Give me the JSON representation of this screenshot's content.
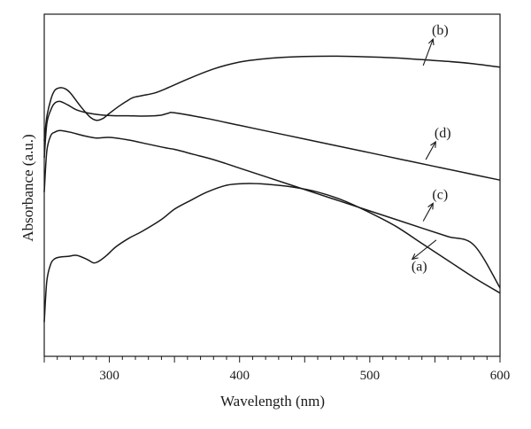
{
  "chart_data": {
    "type": "line",
    "title": "",
    "xlabel": "Wavelength (nm)",
    "ylabel": "Absorbance (a.u.)",
    "xlim": [
      250,
      600
    ],
    "ylim": [
      0,
      1
    ],
    "xticks": [
      300,
      400,
      500,
      600
    ],
    "xtick_labels": [
      "300",
      "400",
      "500",
      "600"
    ],
    "y_ticks_shown": false,
    "grid": false,
    "legend": "none",
    "series": [
      {
        "name": "(a)",
        "x": [
          250,
          252,
          255,
          258,
          262,
          268,
          275,
          283,
          288,
          292,
          298,
          305,
          315,
          325,
          340,
          350,
          362,
          375,
          390,
          405,
          420,
          440,
          460,
          480,
          500,
          520,
          540,
          560,
          580,
          600
        ],
        "y": [
          0.1,
          0.22,
          0.27,
          0.285,
          0.29,
          0.292,
          0.295,
          0.283,
          0.273,
          0.278,
          0.295,
          0.32,
          0.345,
          0.365,
          0.4,
          0.43,
          0.455,
          0.48,
          0.5,
          0.505,
          0.503,
          0.495,
          0.48,
          0.455,
          0.42,
          0.38,
          0.33,
          0.28,
          0.23,
          0.185
        ]
      },
      {
        "name": "(b)",
        "x": [
          250,
          252,
          255,
          258,
          262,
          266,
          270,
          278,
          285,
          290,
          295,
          300,
          307,
          313,
          318,
          325,
          335,
          345,
          360,
          380,
          400,
          420,
          440,
          460,
          480,
          500,
          520,
          540,
          560,
          580,
          600
        ],
        "y": [
          0.63,
          0.7,
          0.75,
          0.777,
          0.785,
          0.782,
          0.77,
          0.73,
          0.7,
          0.69,
          0.695,
          0.71,
          0.73,
          0.745,
          0.756,
          0.762,
          0.77,
          0.785,
          0.81,
          0.84,
          0.86,
          0.87,
          0.875,
          0.877,
          0.877,
          0.875,
          0.872,
          0.867,
          0.862,
          0.855,
          0.845
        ]
      },
      {
        "name": "(c)",
        "x": [
          250,
          252,
          255,
          258,
          262,
          270,
          280,
          290,
          300,
          315,
          330,
          340,
          345,
          350,
          365,
          380,
          400,
          420,
          440,
          460,
          480,
          500,
          520,
          540,
          560,
          580,
          600
        ],
        "y": [
          0.48,
          0.6,
          0.645,
          0.655,
          0.66,
          0.655,
          0.645,
          0.638,
          0.64,
          0.632,
          0.62,
          0.612,
          0.608,
          0.605,
          0.59,
          0.575,
          0.55,
          0.525,
          0.5,
          0.475,
          0.45,
          0.425,
          0.4,
          0.375,
          0.35,
          0.325,
          0.2
        ]
      },
      {
        "name": "(d)",
        "x": [
          250,
          252,
          255,
          258,
          262,
          268,
          275,
          285,
          295,
          305,
          315,
          325,
          335,
          340,
          345,
          350,
          375,
          400,
          425,
          450,
          475,
          500,
          525,
          550,
          575,
          600
        ],
        "y": [
          0.58,
          0.68,
          0.72,
          0.74,
          0.745,
          0.735,
          0.72,
          0.71,
          0.705,
          0.703,
          0.703,
          0.702,
          0.703,
          0.705,
          0.71,
          0.712,
          0.695,
          0.675,
          0.655,
          0.635,
          0.615,
          0.595,
          0.575,
          0.555,
          0.535,
          0.515
        ]
      }
    ],
    "annotations": [
      {
        "text": "(b)",
        "x": 554,
        "y": 0.94,
        "arrow_to": [
          541,
          0.85
        ]
      },
      {
        "text": "(d)",
        "x": 556,
        "y": 0.64,
        "arrow_to": [
          543,
          0.575
        ]
      },
      {
        "text": "(c)",
        "x": 554,
        "y": 0.46,
        "arrow_to": [
          541,
          0.395
        ]
      },
      {
        "text": "(a)",
        "x": 538,
        "y": 0.25,
        "arrow_to": [
          551,
          0.34
        ]
      }
    ]
  }
}
